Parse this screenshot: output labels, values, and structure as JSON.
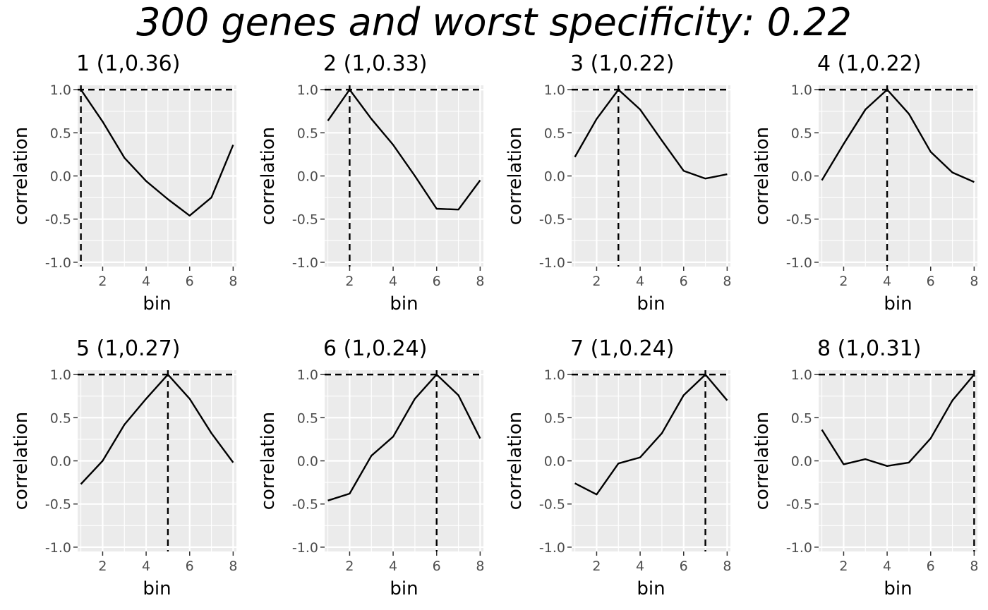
{
  "title": "300 genes and worst specificity: 0.22",
  "chart_data": [
    {
      "type": "line",
      "title": "1 (1,0.36)",
      "xlabel": "bin",
      "ylabel": "correlation",
      "xlim": [
        0.85,
        8.15
      ],
      "ylim": [
        -1.05,
        1.05
      ],
      "x_ticks": [
        2,
        4,
        6,
        8
      ],
      "y_ticks": [
        -1.0,
        -0.5,
        0.0,
        0.5,
        1.0
      ],
      "y_tick_labels": [
        "-1.0",
        "-0.5",
        "0.0",
        "0.5",
        "1.0"
      ],
      "grid": true,
      "x": [
        1,
        2,
        3,
        4,
        5,
        6,
        7,
        8
      ],
      "values": [
        1.0,
        0.63,
        0.21,
        -0.06,
        -0.27,
        -0.46,
        -0.25,
        0.36
      ],
      "hline": 1.0,
      "vline": 1
    },
    {
      "type": "line",
      "title": "2 (1,0.33)",
      "xlabel": "bin",
      "ylabel": "correlation",
      "xlim": [
        0.85,
        8.15
      ],
      "ylim": [
        -1.05,
        1.05
      ],
      "x_ticks": [
        2,
        4,
        6,
        8
      ],
      "y_ticks": [
        -1.0,
        -0.5,
        0.0,
        0.5,
        1.0
      ],
      "y_tick_labels": [
        "-1.0",
        "-0.5",
        "0.0",
        "0.5",
        "1.0"
      ],
      "grid": true,
      "x": [
        1,
        2,
        3,
        4,
        5,
        6,
        7,
        8
      ],
      "values": [
        0.64,
        1.0,
        0.66,
        0.36,
        0.0,
        -0.38,
        -0.39,
        -0.05
      ],
      "hline": 1.0,
      "vline": 2
    },
    {
      "type": "line",
      "title": "3 (1,0.22)",
      "xlabel": "bin",
      "ylabel": "correlation",
      "xlim": [
        0.85,
        8.15
      ],
      "ylim": [
        -1.05,
        1.05
      ],
      "x_ticks": [
        2,
        4,
        6,
        8
      ],
      "y_ticks": [
        -1.0,
        -0.5,
        0.0,
        0.5,
        1.0
      ],
      "y_tick_labels": [
        "-1.0",
        "-0.5",
        "0.0",
        "0.5",
        "1.0"
      ],
      "grid": true,
      "x": [
        1,
        2,
        3,
        4,
        5,
        6,
        7,
        8
      ],
      "values": [
        0.22,
        0.66,
        1.0,
        0.77,
        0.41,
        0.06,
        -0.03,
        0.02
      ],
      "hline": 1.0,
      "vline": 3
    },
    {
      "type": "line",
      "title": "4 (1,0.22)",
      "xlabel": "bin",
      "ylabel": "correlation",
      "xlim": [
        0.85,
        8.15
      ],
      "ylim": [
        -1.05,
        1.05
      ],
      "x_ticks": [
        2,
        4,
        6,
        8
      ],
      "y_ticks": [
        -1.0,
        -0.5,
        0.0,
        0.5,
        1.0
      ],
      "y_tick_labels": [
        "-1.0",
        "-0.5",
        "0.0",
        "0.5",
        "1.0"
      ],
      "grid": true,
      "x": [
        1,
        2,
        3,
        4,
        5,
        6,
        7,
        8
      ],
      "values": [
        -0.05,
        0.37,
        0.77,
        1.0,
        0.72,
        0.28,
        0.04,
        -0.07
      ],
      "hline": 1.0,
      "vline": 4
    },
    {
      "type": "line",
      "title": "5 (1,0.27)",
      "xlabel": "bin",
      "ylabel": "correlation",
      "xlim": [
        0.85,
        8.15
      ],
      "ylim": [
        -1.05,
        1.05
      ],
      "x_ticks": [
        2,
        4,
        6,
        8
      ],
      "y_ticks": [
        -1.0,
        -0.5,
        0.0,
        0.5,
        1.0
      ],
      "y_tick_labels": [
        "-1.0",
        "-0.5",
        "0.0",
        "0.5",
        "1.0"
      ],
      "grid": true,
      "x": [
        1,
        2,
        3,
        4,
        5,
        6,
        7,
        8
      ],
      "values": [
        -0.27,
        0.0,
        0.42,
        0.72,
        1.0,
        0.72,
        0.32,
        -0.02
      ],
      "hline": 1.0,
      "vline": 5
    },
    {
      "type": "line",
      "title": "6 (1,0.24)",
      "xlabel": "bin",
      "ylabel": "correlation",
      "xlim": [
        0.85,
        8.15
      ],
      "ylim": [
        -1.05,
        1.05
      ],
      "x_ticks": [
        2,
        4,
        6,
        8
      ],
      "y_ticks": [
        -1.0,
        -0.5,
        0.0,
        0.5,
        1.0
      ],
      "y_tick_labels": [
        "-1.0",
        "-0.5",
        "0.0",
        "0.5",
        "1.0"
      ],
      "grid": true,
      "x": [
        1,
        2,
        3,
        4,
        5,
        6,
        7,
        8
      ],
      "values": [
        -0.46,
        -0.38,
        0.06,
        0.28,
        0.72,
        1.0,
        0.76,
        0.26
      ],
      "hline": 1.0,
      "vline": 6
    },
    {
      "type": "line",
      "title": "7 (1,0.24)",
      "xlabel": "bin",
      "ylabel": "correlation",
      "xlim": [
        0.85,
        8.15
      ],
      "ylim": [
        -1.05,
        1.05
      ],
      "x_ticks": [
        2,
        4,
        6,
        8
      ],
      "y_ticks": [
        -1.0,
        -0.5,
        0.0,
        0.5,
        1.0
      ],
      "y_tick_labels": [
        "-1.0",
        "-0.5",
        "0.0",
        "0.5",
        "1.0"
      ],
      "grid": true,
      "x": [
        1,
        2,
        3,
        4,
        5,
        6,
        7,
        8
      ],
      "values": [
        -0.26,
        -0.39,
        -0.03,
        0.04,
        0.32,
        0.76,
        1.0,
        0.7
      ],
      "hline": 1.0,
      "vline": 7
    },
    {
      "type": "line",
      "title": "8 (1,0.31)",
      "xlabel": "bin",
      "ylabel": "correlation",
      "xlim": [
        0.85,
        8.15
      ],
      "ylim": [
        -1.05,
        1.05
      ],
      "x_ticks": [
        2,
        4,
        6,
        8
      ],
      "y_ticks": [
        -1.0,
        -0.5,
        0.0,
        0.5,
        1.0
      ],
      "y_tick_labels": [
        "-1.0",
        "-0.5",
        "0.0",
        "0.5",
        "1.0"
      ],
      "grid": true,
      "x": [
        1,
        2,
        3,
        4,
        5,
        6,
        7,
        8
      ],
      "values": [
        0.36,
        -0.04,
        0.02,
        -0.06,
        -0.02,
        0.26,
        0.7,
        1.0
      ],
      "hline": 1.0,
      "vline": 8
    }
  ]
}
